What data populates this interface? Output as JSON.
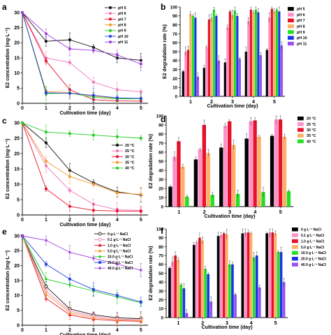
{
  "chart_data": [
    {
      "panel": "a",
      "type": "line",
      "xlabel": "Cultivation time (day)",
      "ylabel": "E2 concentration (mg·L⁻¹)",
      "xlim": [
        0,
        5.3
      ],
      "ylim": [
        0,
        30
      ],
      "xticks": [
        0,
        1,
        2,
        3,
        4,
        5
      ],
      "yticks": [
        0,
        5,
        10,
        15,
        20,
        25,
        30
      ],
      "legend_position": "top-right",
      "x": [
        0,
        1,
        2,
        3,
        4,
        5
      ],
      "series": [
        {
          "name": "pH 5",
          "color": "#111111",
          "marker": "circle",
          "values": [
            30,
            20.5,
            21,
            18.5,
            15,
            14.2
          ]
        },
        {
          "name": "pH 6",
          "color": "#ee77bb",
          "marker": "circle",
          "values": [
            30,
            15,
            13.5,
            7,
            4.5,
            3.8
          ]
        },
        {
          "name": "pH 7",
          "color": "#e8102a",
          "marker": "circle",
          "values": [
            30,
            14,
            4.5,
            1.2,
            0.8,
            0.7
          ]
        },
        {
          "name": "pH 8",
          "color": "#f09a30",
          "marker": "circle",
          "values": [
            30,
            4,
            3.5,
            2.4,
            1.6,
            1.5
          ]
        },
        {
          "name": "pH 9",
          "color": "#22cc22",
          "marker": "circle",
          "values": [
            30,
            3.2,
            3.4,
            2,
            1.5,
            1.5
          ]
        },
        {
          "name": "pH 10",
          "color": "#1f3fe0",
          "marker": "circle",
          "values": [
            30,
            3.5,
            3.3,
            2.6,
            1.8,
            1.6
          ]
        },
        {
          "name": "pH 11",
          "color": "#a040e0",
          "marker": "circle",
          "values": [
            30,
            23,
            18,
            17.5,
            16,
            13
          ]
        }
      ]
    },
    {
      "panel": "b",
      "type": "bar",
      "xlabel": "Cultivation time (day)",
      "ylabel": "E2 degradation rate (%)",
      "ylim": [
        0,
        100
      ],
      "yticks": [
        0,
        10,
        20,
        30,
        40,
        50,
        60,
        70,
        80,
        90,
        100
      ],
      "legend_position": "top-right",
      "categories": [
        "1",
        "2",
        "3",
        "4",
        "5"
      ],
      "series": [
        {
          "name": "pH 5",
          "color": "#000000",
          "values": [
            28,
            32,
            38,
            50,
            52
          ]
        },
        {
          "name": "pH 6",
          "color": "#ff90c8",
          "values": [
            50,
            55,
            77,
            84,
            88
          ]
        },
        {
          "name": "pH 7",
          "color": "#e8102a",
          "values": [
            52,
            86,
            95,
            97,
            98
          ]
        },
        {
          "name": "pH 8",
          "color": "#ffb066",
          "values": [
            92,
            88,
            91,
            94,
            95
          ]
        },
        {
          "name": "pH 9",
          "color": "#22e022",
          "values": [
            90,
            97,
            96,
            97,
            97
          ]
        },
        {
          "name": "pH 10",
          "color": "#1a35e8",
          "values": [
            88,
            90,
            90,
            94,
            95
          ]
        },
        {
          "name": "pH 11",
          "color": "#9b50f0",
          "values": [
            22,
            40,
            42,
            46,
            57
          ]
        }
      ]
    },
    {
      "panel": "c",
      "type": "line",
      "xlabel": "Cultivation time (day)",
      "ylabel": "E2 concentration (mg·L⁻¹)",
      "xlim": [
        0,
        5.3
      ],
      "ylim": [
        0,
        30
      ],
      "xticks": [
        0,
        1,
        2,
        3,
        4,
        5
      ],
      "yticks": [
        0,
        5,
        10,
        15,
        20,
        25,
        30
      ],
      "legend_position": "right",
      "x": [
        0,
        1,
        2,
        3,
        4,
        5
      ],
      "series": [
        {
          "name": "20 °C",
          "color": "#111111",
          "marker": "circle",
          "values": [
            30,
            23.5,
            14.5,
            10.5,
            7.5,
            6.5
          ]
        },
        {
          "name": "25 °C",
          "color": "#ee77bb",
          "marker": "circle",
          "values": [
            30,
            16,
            8,
            3.5,
            1.7,
            1.5
          ]
        },
        {
          "name": "30 °C",
          "color": "#e8102a",
          "marker": "circle",
          "values": [
            30,
            8.5,
            2.8,
            1.5,
            1.3,
            1.2
          ]
        },
        {
          "name": "35 °C",
          "color": "#f09a30",
          "marker": "circle",
          "values": [
            30,
            17.5,
            12.5,
            10,
            7.2,
            6.7
          ]
        },
        {
          "name": "40 °C",
          "color": "#22cc22",
          "marker": "circle",
          "values": [
            30,
            27,
            26.5,
            26,
            25.5,
            25
          ]
        }
      ]
    },
    {
      "panel": "d",
      "type": "bar",
      "xlabel": "Cultivation time (day)",
      "ylabel": "E2 degradation rate (%)",
      "ylim": [
        0,
        100
      ],
      "yticks": [
        0,
        10,
        20,
        30,
        40,
        50,
        60,
        70,
        80,
        90,
        100
      ],
      "legend_position": "top-right",
      "categories": [
        "1",
        "2",
        "3",
        "4",
        "5"
      ],
      "series": [
        {
          "name": "20 °C",
          "color": "#000000",
          "values": [
            22,
            52,
            65,
            75,
            78
          ]
        },
        {
          "name": "25 °C",
          "color": "#ff90c8",
          "values": [
            55,
            63,
            89,
            94,
            96
          ]
        },
        {
          "name": "30 °C",
          "color": "#e8102a",
          "values": [
            72,
            90,
            94,
            95,
            96
          ]
        },
        {
          "name": "35 °C",
          "color": "#ffb066",
          "values": [
            44,
            59,
            68,
            77,
            77
          ]
        },
        {
          "name": "40 °C",
          "color": "#22e022",
          "values": [
            11,
            13,
            14,
            16,
            17
          ]
        }
      ]
    },
    {
      "panel": "e",
      "type": "line",
      "xlabel": "Cultivation time (day)",
      "ylabel": "E2 concentration (mg·L⁻¹)",
      "xlim": [
        0,
        5.3
      ],
      "ylim": [
        0,
        30
      ],
      "xticks": [
        0,
        1,
        2,
        3,
        4,
        5
      ],
      "yticks": [
        0,
        5,
        10,
        15,
        20,
        25,
        30
      ],
      "legend_position": "top-right",
      "x": [
        0,
        1,
        2,
        3,
        4,
        5
      ],
      "series": [
        {
          "name": "0 g·L⁻¹ NaCl",
          "color": "#111111",
          "marker": "circle-open",
          "values": [
            30,
            13,
            5.5,
            3.5,
            2.5,
            2.2
          ]
        },
        {
          "name": "0.1 g·L⁻¹ NaCl",
          "color": "#ee77bb",
          "marker": "circle-open",
          "values": [
            30,
            11.5,
            4.8,
            3,
            2.1,
            1.8
          ]
        },
        {
          "name": "1.0 g·L⁻¹ NaCl",
          "color": "#e8102a",
          "marker": "triangle",
          "values": [
            30,
            9,
            3.5,
            2,
            1.5,
            1.3
          ]
        },
        {
          "name": "5.0 g·L⁻¹ NaCl",
          "color": "#f09a30",
          "marker": "triangle",
          "values": [
            30,
            10.5,
            4.2,
            2.5,
            1.8,
            1.6
          ]
        },
        {
          "name": "10.0 g·L⁻¹ NaCl",
          "color": "#22cc22",
          "marker": "diamond",
          "values": [
            30,
            15.5,
            13.5,
            11.5,
            9.5,
            7.5
          ]
        },
        {
          "name": "20.0 g·L⁻¹ NaCl",
          "color": "#1f3fe0",
          "marker": "square",
          "values": [
            30,
            20.5,
            15.5,
            12,
            10,
            7.8
          ]
        },
        {
          "name": "40.0 g·L⁻¹ NaCl",
          "color": "#a040e0",
          "marker": "diamond",
          "values": [
            30,
            28.5,
            24.5,
            22.5,
            20.5,
            18.5
          ]
        }
      ]
    },
    {
      "panel": "f",
      "type": "bar",
      "xlabel": "Cultivation time (day)",
      "ylabel": "E2 degradation rate (%)",
      "ylim": [
        0,
        100
      ],
      "yticks": [
        0,
        10,
        20,
        30,
        40,
        50,
        60,
        70,
        80,
        90,
        100
      ],
      "legend_position": "top-right",
      "categories": [
        "1",
        "2",
        "3",
        "4",
        "5"
      ],
      "series": [
        {
          "name": "0 g·L⁻¹ NaCl",
          "color": "#000000",
          "values": [
            56,
            82,
            92,
            95,
            95
          ]
        },
        {
          "name": "0.1 g·L⁻¹ NaCl",
          "color": "#ff90c8",
          "values": [
            63,
            85,
            93,
            96,
            96
          ]
        },
        {
          "name": "1.0 g·L⁻¹ NaCl",
          "color": "#e8102a",
          "values": [
            70,
            90,
            95,
            96,
            96
          ]
        },
        {
          "name": "5.0 g·L⁻¹ NaCl",
          "color": "#ffb066",
          "values": [
            65,
            87,
            94,
            95,
            95
          ]
        },
        {
          "name": "10.0 g·L⁻¹ NaCl",
          "color": "#22e022",
          "values": [
            37,
            55,
            60,
            68,
            74
          ]
        },
        {
          "name": "20.0 g·L⁻¹ NaCl",
          "color": "#1a35e8",
          "values": [
            33,
            49,
            60,
            70,
            74
          ]
        },
        {
          "name": "40.0 g·L⁻¹ NaCl",
          "color": "#9b50f0",
          "values": [
            5,
            18,
            26,
            34,
            40
          ]
        }
      ]
    }
  ]
}
